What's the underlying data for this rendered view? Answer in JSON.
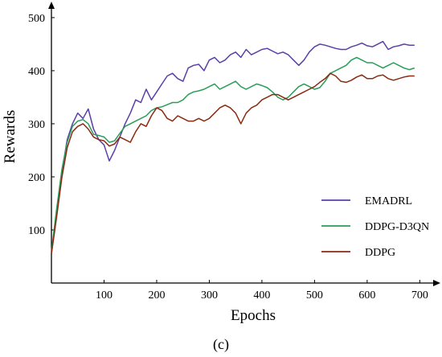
{
  "caption": "(c)",
  "chart_data": {
    "type": "line",
    "xlabel": "Epochs",
    "ylabel": "Rewards",
    "xlim": [
      0,
      730
    ],
    "ylim": [
      0,
      515
    ],
    "x_ticks": [
      100,
      200,
      300,
      400,
      500,
      600,
      700
    ],
    "y_ticks": [
      100,
      200,
      300,
      400,
      500
    ],
    "grid": false,
    "legend_position": "bottom-right",
    "series": [
      {
        "name": "EMADRL",
        "color": "#5a3fa8",
        "x": [
          0,
          10,
          20,
          30,
          40,
          50,
          60,
          70,
          80,
          90,
          100,
          110,
          120,
          130,
          140,
          150,
          160,
          170,
          180,
          190,
          200,
          210,
          220,
          230,
          240,
          250,
          260,
          270,
          280,
          290,
          300,
          310,
          320,
          330,
          340,
          350,
          360,
          370,
          380,
          390,
          400,
          410,
          420,
          430,
          440,
          450,
          460,
          470,
          480,
          490,
          500,
          510,
          520,
          530,
          540,
          550,
          560,
          570,
          580,
          590,
          600,
          610,
          620,
          630,
          640,
          650,
          660,
          670,
          680,
          690
        ],
        "y": [
          55,
          130,
          210,
          270,
          300,
          320,
          310,
          328,
          290,
          270,
          260,
          230,
          250,
          275,
          300,
          320,
          345,
          340,
          365,
          345,
          360,
          375,
          390,
          395,
          385,
          380,
          405,
          410,
          412,
          400,
          420,
          425,
          415,
          420,
          430,
          435,
          425,
          440,
          430,
          435,
          440,
          442,
          437,
          432,
          435,
          430,
          420,
          410,
          420,
          435,
          445,
          450,
          448,
          445,
          442,
          440,
          440,
          445,
          448,
          452,
          447,
          445,
          450,
          455,
          440,
          445,
          447,
          450,
          448,
          448
        ]
      },
      {
        "name": "DDPG-D3QN",
        "color": "#2a9d5a",
        "x": [
          0,
          10,
          20,
          30,
          40,
          50,
          60,
          70,
          80,
          90,
          100,
          110,
          120,
          130,
          140,
          150,
          160,
          170,
          180,
          190,
          200,
          210,
          220,
          230,
          240,
          250,
          260,
          270,
          280,
          290,
          300,
          310,
          320,
          330,
          340,
          350,
          360,
          370,
          380,
          390,
          400,
          410,
          420,
          430,
          440,
          450,
          460,
          470,
          480,
          490,
          500,
          510,
          520,
          530,
          540,
          550,
          560,
          570,
          580,
          590,
          600,
          610,
          620,
          630,
          640,
          650,
          660,
          670,
          680,
          690
        ],
        "y": [
          60,
          140,
          215,
          265,
          295,
          305,
          308,
          300,
          280,
          278,
          275,
          265,
          268,
          282,
          295,
          300,
          305,
          310,
          315,
          325,
          330,
          332,
          336,
          340,
          340,
          345,
          355,
          360,
          362,
          365,
          370,
          375,
          365,
          370,
          375,
          380,
          370,
          365,
          370,
          375,
          372,
          368,
          360,
          350,
          345,
          350,
          360,
          370,
          375,
          370,
          365,
          368,
          380,
          395,
          400,
          405,
          410,
          420,
          425,
          420,
          415,
          415,
          410,
          405,
          410,
          415,
          410,
          405,
          402,
          405
        ]
      },
      {
        "name": "DDPG",
        "color": "#8b2a10",
        "x": [
          0,
          10,
          20,
          30,
          40,
          50,
          60,
          70,
          80,
          90,
          100,
          110,
          120,
          130,
          140,
          150,
          160,
          170,
          180,
          190,
          200,
          210,
          220,
          230,
          240,
          250,
          260,
          270,
          280,
          290,
          300,
          310,
          320,
          330,
          340,
          350,
          360,
          370,
          380,
          390,
          400,
          410,
          420,
          430,
          440,
          450,
          460,
          470,
          480,
          490,
          500,
          510,
          520,
          530,
          540,
          550,
          560,
          570,
          580,
          590,
          600,
          610,
          620,
          630,
          640,
          650,
          660,
          670,
          680,
          690
        ],
        "y": [
          55,
          125,
          200,
          255,
          285,
          295,
          300,
          290,
          275,
          270,
          268,
          258,
          262,
          275,
          270,
          265,
          285,
          300,
          295,
          315,
          330,
          325,
          310,
          305,
          315,
          310,
          305,
          305,
          310,
          305,
          310,
          320,
          330,
          335,
          330,
          320,
          300,
          320,
          330,
          335,
          345,
          350,
          355,
          355,
          350,
          345,
          350,
          355,
          360,
          365,
          370,
          378,
          385,
          395,
          390,
          380,
          378,
          382,
          388,
          392,
          385,
          385,
          390,
          392,
          385,
          382,
          385,
          388,
          390,
          390
        ]
      }
    ]
  }
}
